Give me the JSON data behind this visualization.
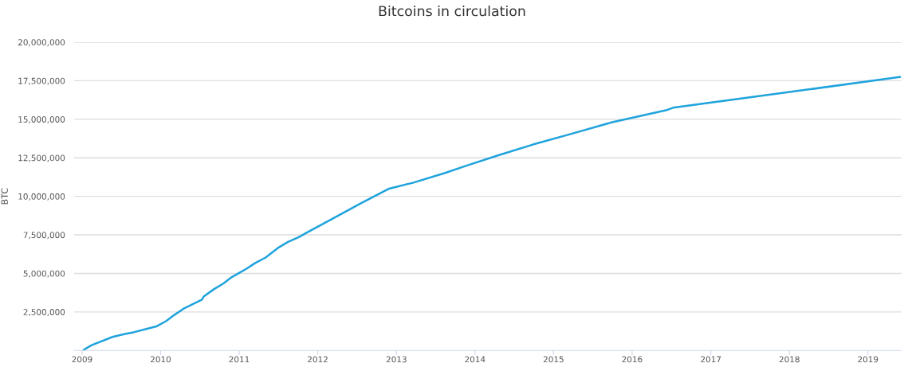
{
  "chart_data": {
    "type": "line",
    "title": "Bitcoins in circulation",
    "ylabel": "BTC",
    "x": [
      "2009-01-09",
      "2009-02-14",
      "2009-05-22",
      "2009-07-19",
      "2009-08-28",
      "2009-10-30",
      "2009-12-12",
      "2010-01-27",
      "2010-03-03",
      "2010-04-22",
      "2010-07-12",
      "2010-07-20",
      "2010-09-05",
      "2010-10-19",
      "2010-11-24",
      "2011-01-01",
      "2011-02-06",
      "2011-03-15",
      "2011-05-04",
      "2011-06-29",
      "2011-08-16",
      "2011-10-05",
      "2011-11-10",
      "2012-03-14",
      "2012-07-16",
      "2012-11-28",
      "2013-03-18",
      "2013-08-15",
      "2013-11-22",
      "2014-04-20",
      "2014-09-27",
      "2015-03-28",
      "2015-10-01",
      "2016-06-06",
      "2016-07-09",
      "2017-12-13",
      "2019-05-30"
    ],
    "series": [
      {
        "color": "#1fa3dc",
        "values": [
          50000,
          340000,
          880000,
          1070000,
          1180000,
          1410000,
          1560000,
          1910000,
          2280000,
          2750000,
          3300000,
          3500000,
          3970000,
          4340000,
          4730000,
          5030000,
          5320000,
          5660000,
          6030000,
          6640000,
          7040000,
          7350000,
          7640000,
          8580000,
          9520000,
          10500000,
          10880000,
          11520000,
          11990000,
          12670000,
          13360000,
          14070000,
          14810000,
          15580000,
          15750000,
          16730000,
          17740000
        ]
      }
    ],
    "xlim": [
      "2008-11-25",
      "2019-06-05"
    ],
    "xticks": [
      "2009",
      "2010",
      "2011",
      "2012",
      "2013",
      "2014",
      "2015",
      "2016",
      "2017",
      "2018",
      "2019"
    ],
    "ylim": [
      0,
      20000000
    ],
    "yticks": [
      {
        "value": 2500000,
        "label": "2,500,000"
      },
      {
        "value": 5000000,
        "label": "5,000,000"
      },
      {
        "value": 7500000,
        "label": "7,500,000"
      },
      {
        "value": 10000000,
        "label": "10,000,000"
      },
      {
        "value": 12500000,
        "label": "12,500,000"
      },
      {
        "value": 15000000,
        "label": "15,000,000"
      },
      {
        "value": 17500000,
        "label": "17,500,000"
      },
      {
        "value": 20000000,
        "label": "20,000,000"
      }
    ],
    "grid": "y",
    "marker": "none",
    "line_style": "solid"
  }
}
